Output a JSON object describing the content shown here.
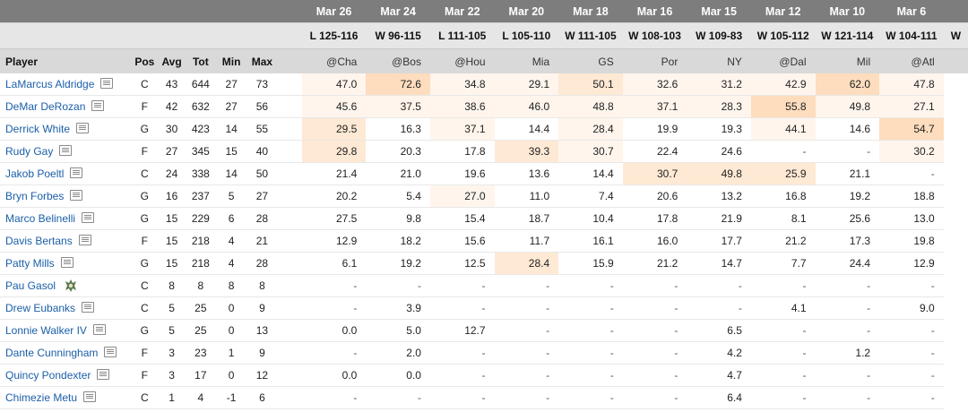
{
  "games": [
    {
      "date": "Mar 26",
      "result": "L 125-116",
      "opp": "@Cha"
    },
    {
      "date": "Mar 24",
      "result": "W 96-115",
      "opp": "@Bos"
    },
    {
      "date": "Mar 22",
      "result": "L 111-105",
      "opp": "@Hou"
    },
    {
      "date": "Mar 20",
      "result": "L 105-110",
      "opp": "Mia"
    },
    {
      "date": "Mar 18",
      "result": "W 111-105",
      "opp": "GS"
    },
    {
      "date": "Mar 16",
      "result": "W 108-103",
      "opp": "Por"
    },
    {
      "date": "Mar 15",
      "result": "W 109-83",
      "opp": "NY"
    },
    {
      "date": "Mar 12",
      "result": "W 105-112",
      "opp": "@Dal"
    },
    {
      "date": "Mar 10",
      "result": "W 121-114",
      "opp": "Mil"
    },
    {
      "date": "Mar 6",
      "result": "W 104-111",
      "opp": "@Atl"
    }
  ],
  "partial_result": "W",
  "columns": {
    "player": "Player",
    "pos": "Pos",
    "avg": "Avg",
    "tot": "Tot",
    "min": "Min",
    "max": "Max"
  },
  "colors": {
    "header_dark": "#7d7d7d",
    "header_light": "#e6e6e6",
    "header_main": "#d9d9d9",
    "link": "#1b5fa8",
    "heat_light": "#fff5ec",
    "heat_mid": "#fee9d4",
    "heat_strong": "#fdddbd"
  },
  "players": [
    {
      "name": "LaMarcus Aldridge",
      "icon": "player-card-icon",
      "pos": "C",
      "avg": "43",
      "tot": "644",
      "min": "27",
      "max": "73",
      "games": [
        "47.0",
        "72.6",
        "34.8",
        "29.1",
        "50.1",
        "32.6",
        "31.2",
        "42.9",
        "62.0",
        "47.8"
      ],
      "heat": [
        1,
        3,
        1,
        1,
        2,
        1,
        1,
        1,
        3,
        1
      ]
    },
    {
      "name": "DeMar DeRozan",
      "icon": "player-card-icon",
      "pos": "F",
      "avg": "42",
      "tot": "632",
      "min": "27",
      "max": "56",
      "games": [
        "45.6",
        "37.5",
        "38.6",
        "46.0",
        "48.8",
        "37.1",
        "28.3",
        "55.8",
        "49.8",
        "27.1"
      ],
      "heat": [
        1,
        1,
        1,
        1,
        1,
        1,
        1,
        3,
        1,
        1
      ]
    },
    {
      "name": "Derrick White",
      "icon": "player-card-icon",
      "pos": "G",
      "avg": "30",
      "tot": "423",
      "min": "14",
      "max": "55",
      "games": [
        "29.5",
        "16.3",
        "37.1",
        "14.4",
        "28.4",
        "19.9",
        "19.3",
        "44.1",
        "14.6",
        "54.7"
      ],
      "heat": [
        2,
        0,
        1,
        0,
        1,
        0,
        0,
        1,
        0,
        3
      ]
    },
    {
      "name": "Rudy Gay",
      "icon": "player-card-icon",
      "pos": "F",
      "avg": "27",
      "tot": "345",
      "min": "15",
      "max": "40",
      "games": [
        "29.8",
        "20.3",
        "17.8",
        "39.3",
        "30.7",
        "22.4",
        "24.6",
        "-",
        "-",
        "30.2"
      ],
      "heat": [
        2,
        0,
        0,
        2,
        1,
        0,
        0,
        0,
        0,
        1
      ]
    },
    {
      "name": "Jakob Poeltl",
      "icon": "player-card-icon",
      "pos": "C",
      "avg": "24",
      "tot": "338",
      "min": "14",
      "max": "50",
      "games": [
        "21.4",
        "21.0",
        "19.6",
        "13.6",
        "14.4",
        "30.7",
        "49.8",
        "25.9",
        "21.1",
        "-"
      ],
      "heat": [
        0,
        0,
        0,
        0,
        0,
        2,
        2,
        2,
        0,
        0
      ]
    },
    {
      "name": "Bryn Forbes",
      "icon": "player-card-icon",
      "pos": "G",
      "avg": "16",
      "tot": "237",
      "min": "5",
      "max": "27",
      "games": [
        "20.2",
        "5.4",
        "27.0",
        "11.0",
        "7.4",
        "20.6",
        "13.2",
        "16.8",
        "19.2",
        "18.8"
      ],
      "heat": [
        0,
        0,
        1,
        0,
        0,
        0,
        0,
        0,
        0,
        0
      ]
    },
    {
      "name": "Marco Belinelli",
      "icon": "player-card-icon",
      "pos": "G",
      "avg": "15",
      "tot": "229",
      "min": "6",
      "max": "28",
      "games": [
        "27.5",
        "9.8",
        "15.4",
        "18.7",
        "10.4",
        "17.8",
        "21.9",
        "8.1",
        "25.6",
        "13.0"
      ],
      "heat": [
        0,
        0,
        0,
        0,
        0,
        0,
        0,
        0,
        0,
        0
      ]
    },
    {
      "name": "Davis Bertans",
      "icon": "player-card-icon",
      "pos": "F",
      "avg": "15",
      "tot": "218",
      "min": "4",
      "max": "21",
      "games": [
        "12.9",
        "18.2",
        "15.6",
        "11.7",
        "16.1",
        "16.0",
        "17.7",
        "21.2",
        "17.3",
        "19.8"
      ],
      "heat": [
        0,
        0,
        0,
        0,
        0,
        0,
        0,
        0,
        0,
        0
      ]
    },
    {
      "name": "Patty Mills",
      "icon": "player-card-icon",
      "pos": "G",
      "avg": "15",
      "tot": "218",
      "min": "4",
      "max": "28",
      "games": [
        "6.1",
        "19.2",
        "12.5",
        "28.4",
        "15.9",
        "21.2",
        "14.7",
        "7.7",
        "24.4",
        "12.9"
      ],
      "heat": [
        0,
        0,
        0,
        2,
        0,
        0,
        0,
        0,
        0,
        0
      ]
    },
    {
      "name": "Pau Gasol",
      "icon": "team-logo-icon",
      "pos": "C",
      "avg": "8",
      "tot": "8",
      "min": "8",
      "max": "8",
      "games": [
        "-",
        "-",
        "-",
        "-",
        "-",
        "-",
        "-",
        "-",
        "-",
        "-"
      ],
      "heat": [
        0,
        0,
        0,
        0,
        0,
        0,
        0,
        0,
        0,
        0
      ]
    },
    {
      "name": "Drew Eubanks",
      "icon": "player-card-icon",
      "pos": "C",
      "avg": "5",
      "tot": "25",
      "min": "0",
      "max": "9",
      "games": [
        "-",
        "3.9",
        "-",
        "-",
        "-",
        "-",
        "-",
        "4.1",
        "-",
        "9.0"
      ],
      "heat": [
        0,
        0,
        0,
        0,
        0,
        0,
        0,
        0,
        0,
        0
      ]
    },
    {
      "name": "Lonnie Walker IV",
      "icon": "player-card-icon",
      "pos": "G",
      "avg": "5",
      "tot": "25",
      "min": "0",
      "max": "13",
      "games": [
        "0.0",
        "5.0",
        "12.7",
        "-",
        "-",
        "-",
        "6.5",
        "-",
        "-",
        "-"
      ],
      "heat": [
        0,
        0,
        0,
        0,
        0,
        0,
        0,
        0,
        0,
        0
      ]
    },
    {
      "name": "Dante Cunningham",
      "icon": "player-card-icon",
      "pos": "F",
      "avg": "3",
      "tot": "23",
      "min": "1",
      "max": "9",
      "games": [
        "-",
        "2.0",
        "-",
        "-",
        "-",
        "-",
        "4.2",
        "-",
        "1.2",
        "-"
      ],
      "heat": [
        0,
        0,
        0,
        0,
        0,
        0,
        0,
        0,
        0,
        0
      ]
    },
    {
      "name": "Quincy Pondexter",
      "icon": "player-card-icon",
      "pos": "F",
      "avg": "3",
      "tot": "17",
      "min": "0",
      "max": "12",
      "games": [
        "0.0",
        "0.0",
        "-",
        "-",
        "-",
        "-",
        "4.7",
        "-",
        "-",
        "-"
      ],
      "heat": [
        0,
        0,
        0,
        0,
        0,
        0,
        0,
        0,
        0,
        0
      ]
    },
    {
      "name": "Chimezie Metu",
      "icon": "player-card-icon",
      "pos": "C",
      "avg": "1",
      "tot": "4",
      "min": "-1",
      "max": "6",
      "games": [
        "-",
        "-",
        "-",
        "-",
        "-",
        "-",
        "6.4",
        "-",
        "-",
        "-"
      ],
      "heat": [
        0,
        0,
        0,
        0,
        0,
        0,
        0,
        0,
        0,
        0
      ]
    }
  ]
}
